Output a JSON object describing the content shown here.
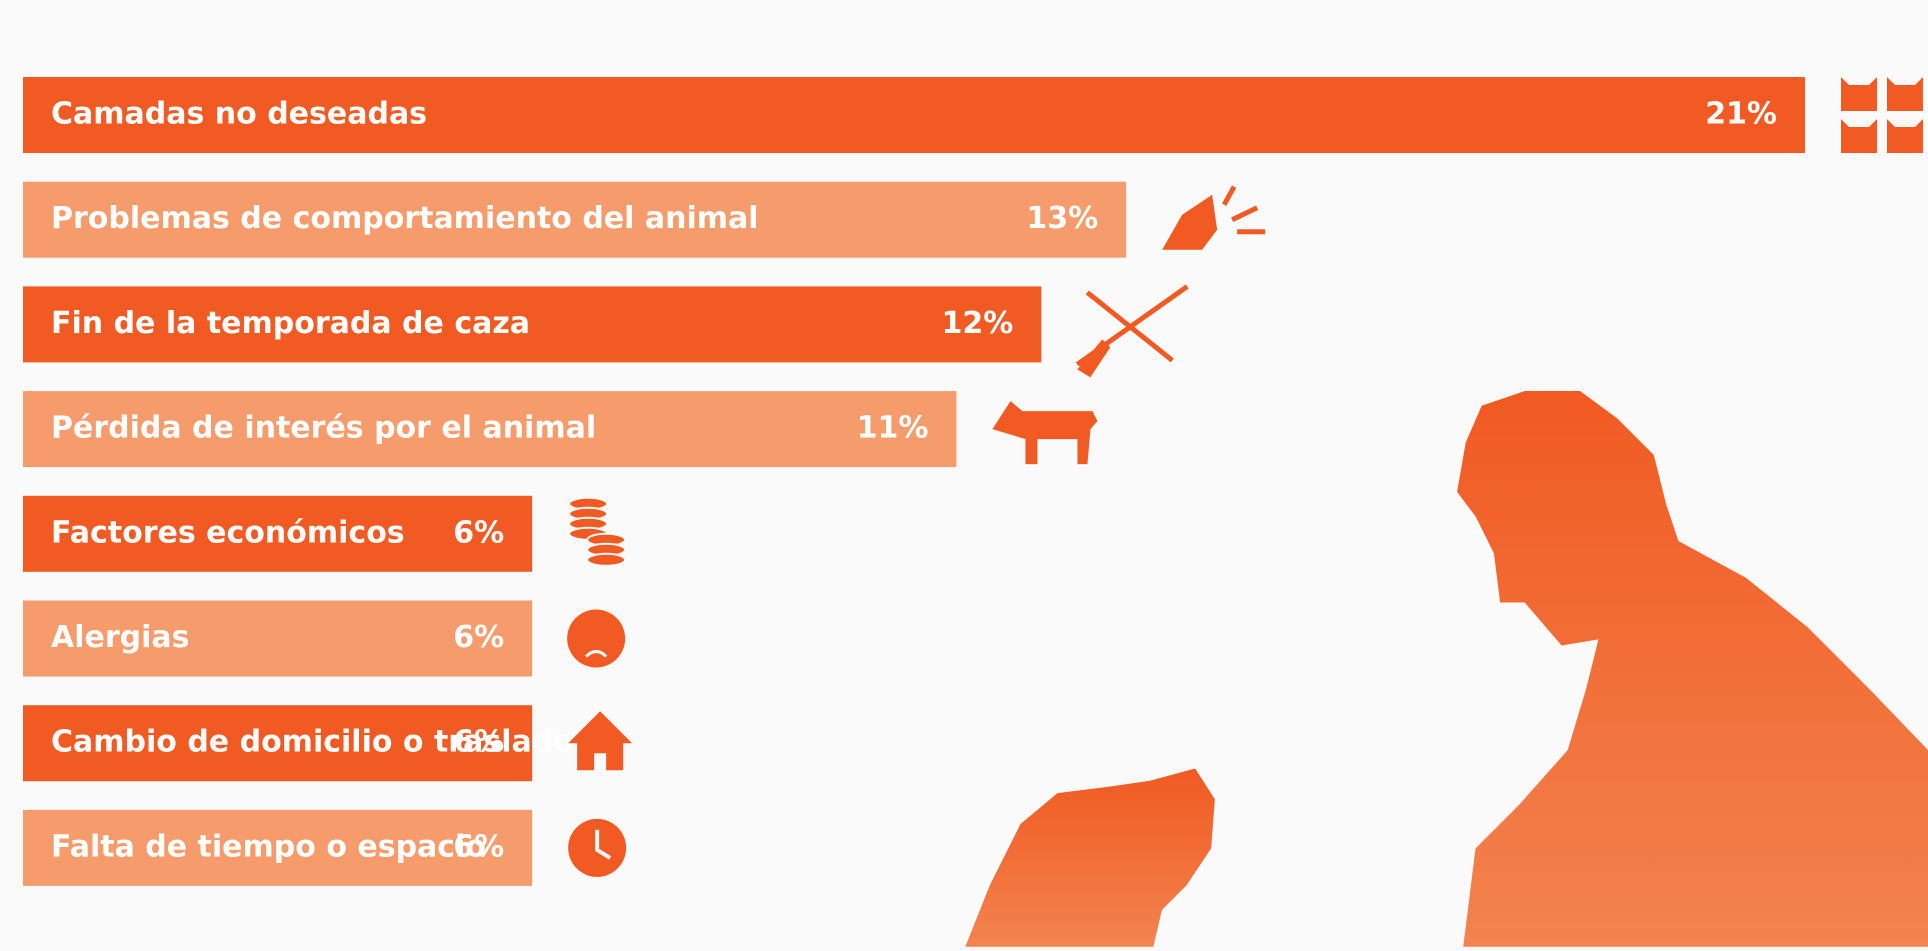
{
  "chart_data": {
    "type": "bar",
    "categories": [
      "Camadas no deseadas",
      "Problemas de comportamiento del animal",
      "Fin de la temporada de caza",
      "Pérdida de interés por el animal",
      "Factores económicos",
      "Alergias",
      "Cambio de domicilio o traslado",
      "Falta de tiempo o espacio"
    ],
    "values": [
      21,
      13,
      12,
      11,
      6,
      6,
      6,
      6
    ],
    "value_labels": [
      "21%",
      "13%",
      "12%",
      "11%",
      "6%",
      "6%",
      "6%",
      "6%"
    ],
    "colors": [
      "#f15a22",
      "#f69b6b",
      "#f15a22",
      "#f69b6b",
      "#f15a22",
      "#f69b6b",
      "#f15a22",
      "#f69b6b"
    ]
  }
}
